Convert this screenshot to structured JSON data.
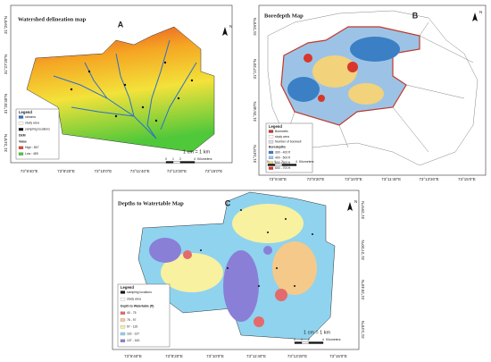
{
  "panels": [
    {
      "letter": "A",
      "title": "Watershed delineation map",
      "north": "N",
      "legend": {
        "title": "Legend",
        "items": [
          {
            "label": "streams",
            "color": "#2a6fc9"
          },
          {
            "label": "study area",
            "color": "#ffffff"
          },
          {
            "label": "sampling locations",
            "color": "#111111"
          },
          {
            "label": "DEM"
          },
          {
            "label": "Value"
          },
          {
            "label": "High : 557",
            "color": "#e8402a"
          },
          {
            "label": "Low : 489",
            "color": "#4fc83a"
          }
        ]
      },
      "scale_note": "1 cm = 1 km",
      "scale_ticks": [
        "0",
        "1",
        "2",
        "4"
      ],
      "scale_unit": "Kilometers",
      "lon_labels": [
        "73°6'40\"E",
        "73°8'20\"E",
        "73°10'0\"E",
        "73°11'40\"E",
        "73°13'20\"E",
        "73°15'0\"E"
      ],
      "lat_labels": [
        "31°24'0\"N",
        "31°25'40\"N",
        "31°27'20\"N",
        "31°29'0\"N"
      ]
    },
    {
      "letter": "B",
      "title": "Boredepth Map",
      "north": "N",
      "legend": {
        "title": "Legend",
        "items": [
          {
            "label": "Borewells",
            "color": "#c0392b"
          },
          {
            "label": "study area",
            "color": "#ffffff"
          },
          {
            "label": "Number of borewell",
            "color": "#dddddd"
          },
          {
            "label": "Boredepths"
          },
          {
            "label": "300 - 400 ft",
            "color": "#3b7fc4"
          },
          {
            "label": "400 - 500 ft",
            "color": "#9cc3e6"
          },
          {
            "label": "500 - 600 ft",
            "color": "#f2d27a"
          },
          {
            "label": "600 - 700 ft",
            "color": "#d9372b"
          }
        ]
      },
      "scale_note": "1 cm = 1 km",
      "scale_ticks": [
        "0",
        "1",
        "2",
        "4"
      ],
      "scale_unit": "Kilometers",
      "lon_labels": [
        "73°6'40\"E",
        "73°8'20\"E",
        "73°10'0\"E",
        "73°11'40\"E",
        "73°13'20\"E",
        "73°15'0\"E"
      ],
      "lat_labels": [
        "31°24'0\"N",
        "31°25'40\"N",
        "31°27'20\"N",
        "31°29'0\"N"
      ]
    },
    {
      "letter": "C",
      "title": "Depths to Watertable Map",
      "north": "N",
      "legend": {
        "title": "Legend",
        "items": [
          {
            "label": "sampling locations",
            "color": "#111111"
          },
          {
            "label": "study area",
            "color": "#ffffff"
          },
          {
            "label": "Depth to Watertable (ft)"
          },
          {
            "label": "40 - 75",
            "color": "#e36b6b"
          },
          {
            "label": "76 - 97",
            "color": "#f5c98a"
          },
          {
            "label": "97 - 115",
            "color": "#f7f1a0"
          },
          {
            "label": "116 - 137",
            "color": "#8fd3ef"
          },
          {
            "label": "137 - 160",
            "color": "#8a7fd6"
          }
        ]
      },
      "scale_note": "1 cm = 1 km",
      "scale_ticks": [
        "0",
        "1",
        "2",
        "4"
      ],
      "scale_unit": "Kilometers",
      "lon_labels": [
        "73°6'40\"E",
        "73°8'20\"E",
        "73°10'0\"E",
        "73°11'40\"E",
        "73°13'20\"E",
        "73°15'0\"E"
      ],
      "lat_labels": [
        "31°24'0\"N",
        "31°25'40\"N",
        "31°27'20\"N",
        "31°29'0\"N"
      ]
    }
  ]
}
